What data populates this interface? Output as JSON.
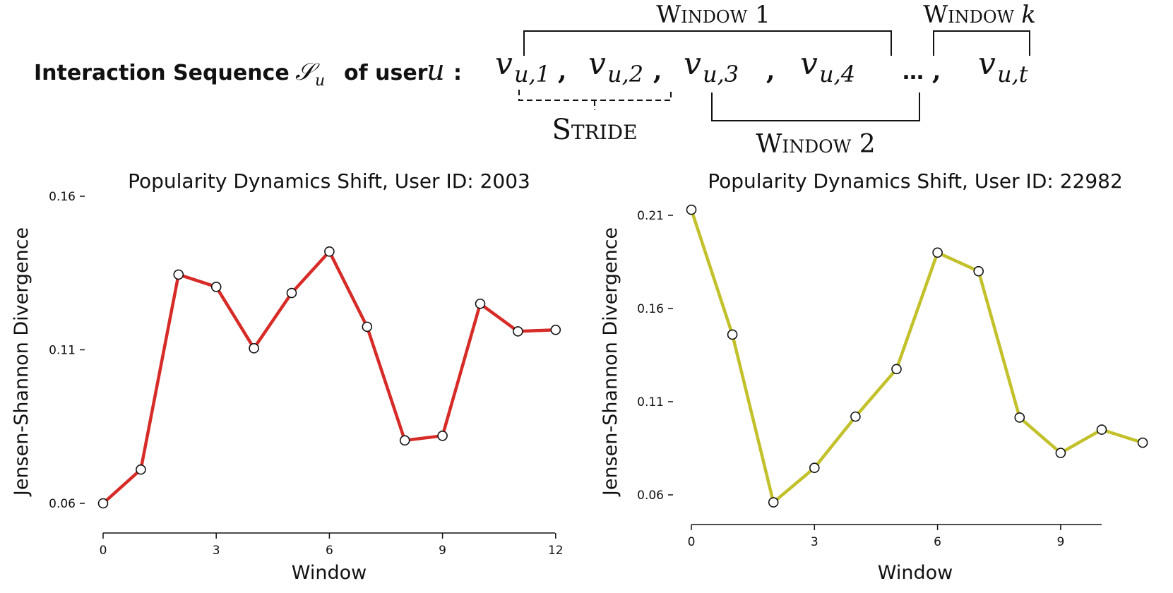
{
  "header": {
    "label_a": "Interaction Sequence",
    "seq_symbol": "𝒮",
    "seq_sub": "u",
    "label_b": "of user",
    "user_symbol": "u",
    "colon": ":",
    "v": "v",
    "items": [
      "u,1",
      "u,2",
      "u,3",
      "u,4",
      "u,t"
    ],
    "comma": ",",
    "ellipsis": "…",
    "window1": "Window 1",
    "window2": "Window 2",
    "windowk_word": "Window",
    "windowk_var": "k",
    "stride": "Stride"
  },
  "chart_data": [
    {
      "type": "line",
      "title": "Popularity Dynamics Shift, User ID: 2003",
      "xlabel": "Window",
      "ylabel": "Jensen-Shannon Divergence",
      "x": [
        0,
        1,
        2,
        3,
        4,
        5,
        6,
        7,
        8,
        9,
        10,
        11,
        12
      ],
      "y": [
        0.06,
        0.071,
        0.1345,
        0.1305,
        0.1105,
        0.1285,
        0.142,
        0.1175,
        0.0805,
        0.082,
        0.125,
        0.116,
        0.1165
      ],
      "xticks": [
        0,
        3,
        6,
        9,
        12
      ],
      "yticks": [
        0.06,
        0.11,
        0.16
      ],
      "ytick_labels": [
        "0.06",
        "0.11",
        "0.16"
      ],
      "xlim": [
        0,
        12
      ],
      "ylim": [
        0.06,
        0.16
      ],
      "color": "#d62b27",
      "marker": "open-circle",
      "grid": false
    },
    {
      "type": "line",
      "title": "Popularity Dynamics Shift, User ID: 22982",
      "xlabel": "Window",
      "ylabel": "Jensen-Shannon Divergence",
      "x": [
        0,
        1,
        2,
        3,
        4,
        5,
        6,
        7,
        8,
        9,
        10,
        11
      ],
      "y": [
        0.213,
        0.146,
        0.056,
        0.0745,
        0.102,
        0.1275,
        0.19,
        0.18,
        0.1015,
        0.0825,
        0.095,
        0.088
      ],
      "xticks": [
        0,
        3,
        6,
        9
      ],
      "yticks": [
        0.06,
        0.11,
        0.16,
        0.21
      ],
      "ytick_labels": [
        "0.06",
        "0.11",
        "0.16",
        "0.21"
      ],
      "xlim": [
        0,
        10
      ],
      "ylim": [
        0.06,
        0.21
      ],
      "color": "#c2c12b",
      "marker": "open-circle",
      "grid": false
    }
  ]
}
